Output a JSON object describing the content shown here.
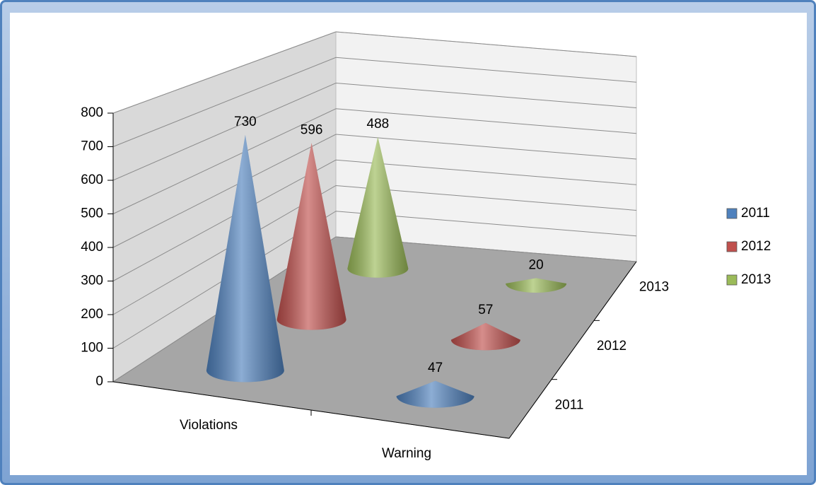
{
  "chart_data": {
    "type": "cone",
    "categories": [
      "Violations",
      "Warning"
    ],
    "series": [
      {
        "name": "2011",
        "color": "#4f81bd",
        "values": [
          730,
          47
        ]
      },
      {
        "name": "2012",
        "color": "#c0504d",
        "values": [
          596,
          57
        ]
      },
      {
        "name": "2013",
        "color": "#9bbb59",
        "values": [
          488,
          20
        ]
      }
    ],
    "ylim": [
      0,
      800
    ],
    "yticks": [
      0,
      100,
      200,
      300,
      400,
      500,
      600,
      700,
      800
    ],
    "grid": true,
    "legend": "right"
  }
}
